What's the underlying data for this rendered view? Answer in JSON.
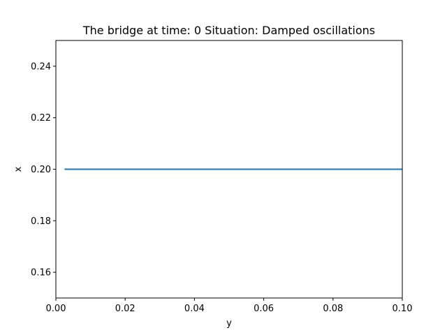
{
  "chart_data": {
    "type": "line",
    "title": "The bridge at time: 0 Situation: Damped oscillations",
    "xlabel": "y",
    "ylabel": "x",
    "xlim": [
      0.0,
      0.1
    ],
    "ylim": [
      0.15,
      0.25
    ],
    "x_ticks": [
      "0.00",
      "0.02",
      "0.04",
      "0.06",
      "0.08",
      "0.10"
    ],
    "y_ticks": [
      "0.16",
      "0.18",
      "0.20",
      "0.22",
      "0.24"
    ],
    "grid": false,
    "series": [
      {
        "color": "#1f77b4",
        "x": [
          0.0025,
          0.1
        ],
        "y": [
          0.2,
          0.2
        ]
      }
    ]
  }
}
